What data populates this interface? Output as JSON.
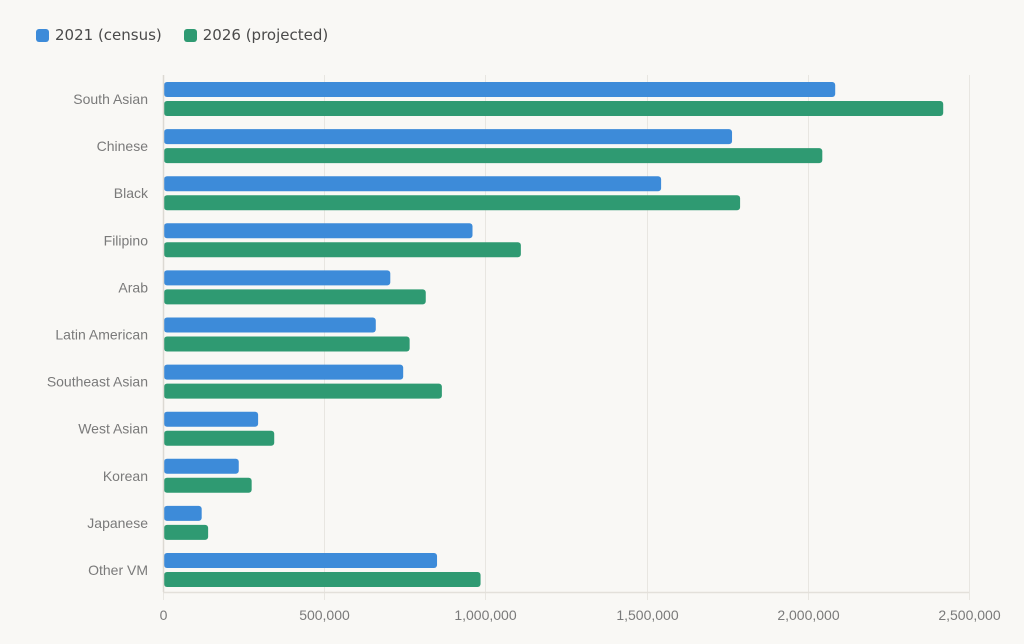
{
  "chart_data": {
    "type": "bar",
    "orientation": "horizontal",
    "title": "",
    "xlabel": "",
    "ylabel": "",
    "categories": [
      "South Asian",
      "Chinese",
      "Black",
      "Filipino",
      "Arab",
      "Latin American",
      "Southeast Asian",
      "West Asian",
      "Korean",
      "Japanese",
      "Other VM"
    ],
    "series": [
      {
        "name": "2021 (census)",
        "color": "#3d8bd9",
        "values": [
          2085000,
          1765000,
          1545000,
          960000,
          705000,
          660000,
          745000,
          295000,
          235000,
          120000,
          850000
        ]
      },
      {
        "name": "2026 (projected)",
        "color": "#2f9a72",
        "values": [
          2420000,
          2045000,
          1790000,
          1110000,
          815000,
          765000,
          865000,
          345000,
          275000,
          140000,
          985000
        ]
      }
    ],
    "xlim": [
      0,
      2500000
    ],
    "xticks": [
      0,
      500000,
      1000000,
      1500000,
      2000000,
      2500000
    ],
    "xtick_labels": [
      "0",
      "500,000",
      "1,000,000",
      "1,500,000",
      "2,000,000",
      "2,500,000"
    ],
    "grid": true,
    "legend_position": "top-left",
    "background": "#f9f8f5",
    "gridline_color": "#e8e6e1",
    "label_color": "#7a7a7a"
  },
  "legend": {
    "items": [
      {
        "label": "2021 (census)",
        "color": "#3d8bd9"
      },
      {
        "label": "2026 (projected)",
        "color": "#2f9a72"
      }
    ]
  }
}
